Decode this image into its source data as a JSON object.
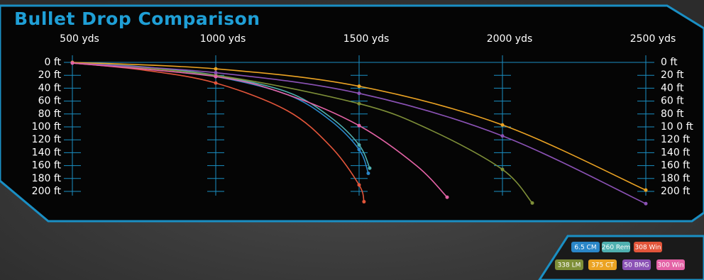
{
  "chart_data": {
    "type": "line",
    "title": "Bullet Drop Comparison",
    "xlim": [
      500,
      2500
    ],
    "xticks": [
      {
        "value": 500,
        "label": "500 yds"
      },
      {
        "value": 1000,
        "label": "1000 yds"
      },
      {
        "value": 1500,
        "label": "1500 yds"
      },
      {
        "value": 2000,
        "label": "2000 yds"
      },
      {
        "value": 2500,
        "label": "2500 yds"
      }
    ],
    "ylim": [
      0,
      200
    ],
    "yticks": [
      {
        "value": 0,
        "label": "0 ft"
      },
      {
        "value": 20,
        "label": "20 ft"
      },
      {
        "value": 40,
        "label": "40 ft"
      },
      {
        "value": 60,
        "label": "60 ft"
      },
      {
        "value": 80,
        "label": "80 ft"
      },
      {
        "value": 100,
        "label": "100 ft"
      },
      {
        "value": 120,
        "label": "120 ft"
      },
      {
        "value": 140,
        "label": "140 ft"
      },
      {
        "value": 160,
        "label": "160 ft"
      },
      {
        "value": 180,
        "label": "180 ft"
      },
      {
        "value": 200,
        "label": "200 ft"
      }
    ],
    "y2lim": [
      0,
      200
    ],
    "y2ticks": [
      {
        "value": 0,
        "label": "0 ft"
      },
      {
        "value": 20,
        "label": "20 ft"
      },
      {
        "value": 40,
        "label": "40 ft"
      },
      {
        "value": 60,
        "label": "60 ft"
      },
      {
        "value": 80,
        "label": "80 ft"
      },
      {
        "value": 100,
        "label": "10 0 ft"
      },
      {
        "value": 120,
        "label": "120 ft"
      },
      {
        "value": 140,
        "label": "140 ft"
      },
      {
        "value": 160,
        "label": "160 ft"
      },
      {
        "value": 180,
        "label": "180 ft"
      },
      {
        "value": 200,
        "label": "200 ft"
      }
    ],
    "series": [
      {
        "name": "6.5 CM",
        "color": "#2a86c8",
        "x": [
          500,
          750,
          1000,
          1250,
          1400,
          1500,
          1532
        ],
        "values": [
          1,
          8,
          22,
          50,
          90,
          135,
          172
        ]
      },
      {
        "name": "260 Rem",
        "color": "#4fb0b0",
        "x": [
          500,
          750,
          1000,
          1250,
          1400,
          1500,
          1537
        ],
        "values": [
          1,
          7,
          20,
          46,
          85,
          128,
          164
        ]
      },
      {
        "name": "308 Win",
        "color": "#e2553a",
        "x": [
          500,
          750,
          1000,
          1250,
          1400,
          1500,
          1517
        ],
        "values": [
          1,
          12,
          32,
          75,
          130,
          190,
          216
        ]
      },
      {
        "name": "338 LM",
        "color": "#7e8f38",
        "x": [
          500,
          1000,
          1500,
          1750,
          2000,
          2104
        ],
        "values": [
          1,
          20,
          64,
          105,
          166,
          218
        ]
      },
      {
        "name": "375 CT",
        "color": "#eba323",
        "x": [
          500,
          1000,
          1500,
          2000,
          2500
        ],
        "values": [
          0,
          10,
          37,
          97,
          198
        ]
      },
      {
        "name": "50 BMG",
        "color": "#8b52b5",
        "x": [
          500,
          1000,
          1500,
          2000,
          2500
        ],
        "values": [
          1,
          16,
          48,
          114,
          219
        ]
      },
      {
        "name": "300 Win",
        "color": "#e463a6",
        "x": [
          500,
          1000,
          1250,
          1500,
          1700,
          1807
        ],
        "values": [
          1,
          22,
          50,
          98,
          160,
          209
        ]
      }
    ]
  }
}
